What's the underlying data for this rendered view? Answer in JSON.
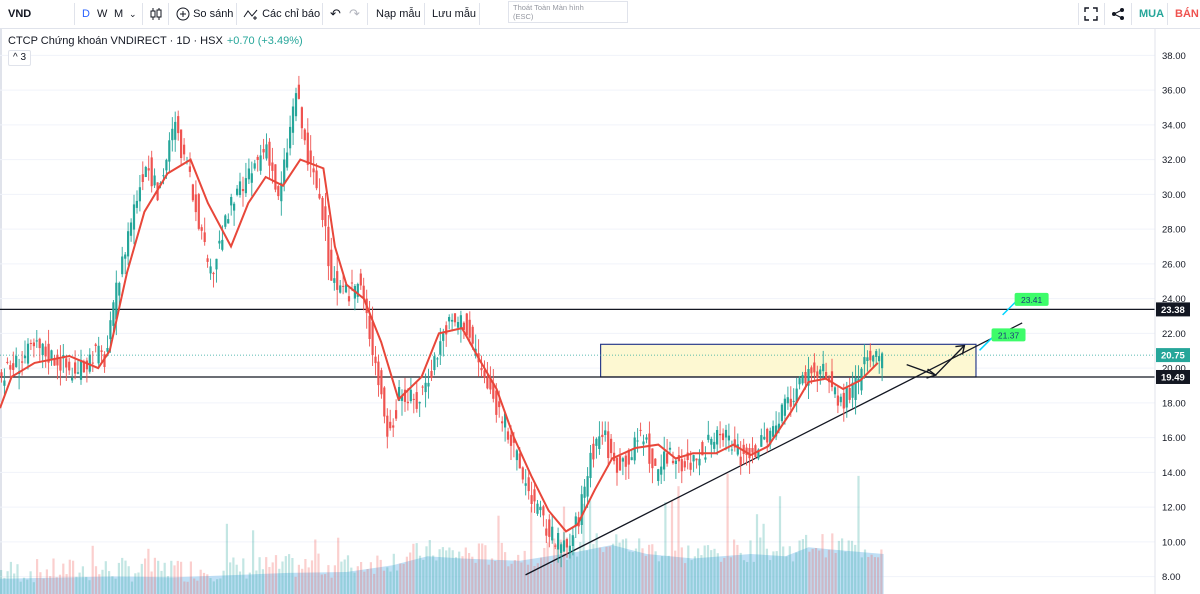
{
  "toolbar": {
    "symbol": "VND",
    "intervals": [
      "D",
      "W",
      "M"
    ],
    "compare_label": "So sánh",
    "indicators_label": "Các chỉ báo",
    "load_template_label": "Nạp mẫu",
    "save_template_label": "Lưu mẫu",
    "fullscreen_hint_line1": "Thoát Toàn Màn hình",
    "fullscreen_hint_line2": "(ESC)",
    "buy_label": "MUA",
    "sell_label": "BÁN",
    "colors": {
      "buy": "#26a69a",
      "sell": "#ef5350",
      "interval_active": "#2962ff"
    }
  },
  "legend": {
    "title": "CTCP Chứng khoán VNDIRECT · 1D · HSX",
    "change": "+0.70 (+3.49%)",
    "collapsed_count": "3"
  },
  "chart_data": {
    "type": "candlestick",
    "ylim": [
      7.0,
      39.0
    ],
    "yticks": [
      "38.00",
      "36.00",
      "34.00",
      "32.00",
      "30.00",
      "28.00",
      "26.00",
      "24.00",
      "22.00",
      "20.00",
      "18.00",
      "16.00",
      "14.00",
      "12.00",
      "10.00",
      "8.00"
    ],
    "price_labels": [
      {
        "text": "23.38",
        "value": 23.38,
        "bg": "#131722",
        "color": "#ffffff"
      },
      {
        "text": "20.75",
        "value": 20.75,
        "bg": "#26a69a",
        "color": "#ffffff"
      },
      {
        "text": "19.49",
        "value": 19.49,
        "bg": "#131722",
        "color": "#ffffff"
      }
    ],
    "horizontal_lines": [
      23.38,
      19.49
    ],
    "last_price": 20.75,
    "zone": {
      "top": 21.37,
      "bottom": 19.49,
      "x_start": 0.52,
      "x_end": 0.845
    },
    "trendline": {
      "from": [
        0.455,
        8.1
      ],
      "to": [
        0.885,
        22.6
      ]
    },
    "targets": [
      {
        "label": "23.41",
        "value": 23.41
      },
      {
        "label": "21.37",
        "value": 21.37
      }
    ],
    "price_path": [
      [
        0.0,
        19.6
      ],
      [
        0.03,
        21.2
      ],
      [
        0.05,
        20.5
      ],
      [
        0.065,
        19.5
      ],
      [
        0.08,
        21.0
      ],
      [
        0.09,
        20.5
      ],
      [
        0.1,
        24.5
      ],
      [
        0.11,
        28.0
      ],
      [
        0.125,
        32.0
      ],
      [
        0.135,
        30.0
      ],
      [
        0.15,
        34.0
      ],
      [
        0.16,
        31.5
      ],
      [
        0.17,
        29.0
      ],
      [
        0.18,
        25.0
      ],
      [
        0.19,
        27.5
      ],
      [
        0.2,
        29.5
      ],
      [
        0.215,
        31.0
      ],
      [
        0.23,
        33.0
      ],
      [
        0.24,
        29.5
      ],
      [
        0.255,
        36.0
      ],
      [
        0.265,
        32.0
      ],
      [
        0.275,
        30.0
      ],
      [
        0.285,
        25.5
      ],
      [
        0.295,
        24.0
      ],
      [
        0.31,
        25.0
      ],
      [
        0.325,
        20.0
      ],
      [
        0.335,
        16.0
      ],
      [
        0.345,
        18.5
      ],
      [
        0.36,
        18.0
      ],
      [
        0.375,
        20.5
      ],
      [
        0.385,
        22.5
      ],
      [
        0.4,
        22.8
      ],
      [
        0.41,
        21.0
      ],
      [
        0.42,
        19.0
      ],
      [
        0.435,
        17.0
      ],
      [
        0.45,
        14.0
      ],
      [
        0.46,
        12.5
      ],
      [
        0.47,
        11.0
      ],
      [
        0.48,
        10.0
      ],
      [
        0.49,
        9.5
      ],
      [
        0.5,
        11.5
      ],
      [
        0.51,
        15.0
      ],
      [
        0.52,
        16.5
      ],
      [
        0.53,
        14.5
      ],
      [
        0.545,
        15.0
      ],
      [
        0.555,
        16.5
      ],
      [
        0.565,
        14.0
      ],
      [
        0.58,
        15.0
      ],
      [
        0.595,
        14.5
      ],
      [
        0.61,
        15.5
      ],
      [
        0.625,
        16.0
      ],
      [
        0.64,
        15.0
      ],
      [
        0.655,
        15.5
      ],
      [
        0.67,
        16.5
      ],
      [
        0.685,
        18.5
      ],
      [
        0.7,
        20.0
      ],
      [
        0.715,
        19.5
      ],
      [
        0.725,
        18.0
      ],
      [
        0.74,
        19.0
      ],
      [
        0.75,
        20.5
      ],
      [
        0.765,
        20.2
      ]
    ],
    "ma_path": [
      [
        0.0,
        17.7
      ],
      [
        0.01,
        19.5
      ],
      [
        0.03,
        20.3
      ],
      [
        0.06,
        20.7
      ],
      [
        0.085,
        20.0
      ],
      [
        0.095,
        21.0
      ],
      [
        0.11,
        25.5
      ],
      [
        0.125,
        29.0
      ],
      [
        0.145,
        31.2
      ],
      [
        0.165,
        32.0
      ],
      [
        0.18,
        29.5
      ],
      [
        0.2,
        27.0
      ],
      [
        0.215,
        29.5
      ],
      [
        0.23,
        31.0
      ],
      [
        0.245,
        30.5
      ],
      [
        0.26,
        32.0
      ],
      [
        0.28,
        31.5
      ],
      [
        0.29,
        27.0
      ],
      [
        0.3,
        24.8
      ],
      [
        0.315,
        24.0
      ],
      [
        0.33,
        21.5
      ],
      [
        0.345,
        18.2
      ],
      [
        0.365,
        19.5
      ],
      [
        0.38,
        22.0
      ],
      [
        0.4,
        22.3
      ],
      [
        0.415,
        20.5
      ],
      [
        0.43,
        18.8
      ],
      [
        0.445,
        16.0
      ],
      [
        0.46,
        13.8
      ],
      [
        0.475,
        11.8
      ],
      [
        0.49,
        10.6
      ],
      [
        0.5,
        11.0
      ],
      [
        0.515,
        13.0
      ],
      [
        0.53,
        14.8
      ],
      [
        0.55,
        15.4
      ],
      [
        0.57,
        15.6
      ],
      [
        0.585,
        14.8
      ],
      [
        0.6,
        15.1
      ],
      [
        0.62,
        15.1
      ],
      [
        0.635,
        15.6
      ],
      [
        0.65,
        15.0
      ],
      [
        0.665,
        15.5
      ],
      [
        0.685,
        17.5
      ],
      [
        0.7,
        19.2
      ],
      [
        0.715,
        19.4
      ],
      [
        0.73,
        18.8
      ],
      [
        0.745,
        19.3
      ],
      [
        0.76,
        20.3
      ]
    ],
    "volume_profile": [
      [
        0.0,
        0.25
      ],
      [
        0.1,
        0.3
      ],
      [
        0.15,
        0.28
      ],
      [
        0.25,
        0.38
      ],
      [
        0.3,
        0.4
      ],
      [
        0.34,
        0.55
      ],
      [
        0.37,
        0.75
      ],
      [
        0.4,
        0.7
      ],
      [
        0.45,
        0.65
      ],
      [
        0.5,
        0.85
      ],
      [
        0.53,
        1.0
      ],
      [
        0.56,
        0.8
      ],
      [
        0.6,
        0.7
      ],
      [
        0.65,
        0.8
      ],
      [
        0.68,
        0.75
      ],
      [
        0.7,
        0.95
      ],
      [
        0.72,
        0.9
      ],
      [
        0.765,
        0.8
      ]
    ],
    "colors": {
      "up": "#26a69a",
      "down": "#ef5350",
      "ma": "#e8473a",
      "hline": "#131722",
      "trendline": "#131722",
      "zone_fill": "#fdf8d2",
      "zone_border": "#2c3e8c",
      "last_price_line": "#26a69a",
      "target_bg": "#3dfc6a",
      "volume_fill": "#aad4f2"
    }
  }
}
